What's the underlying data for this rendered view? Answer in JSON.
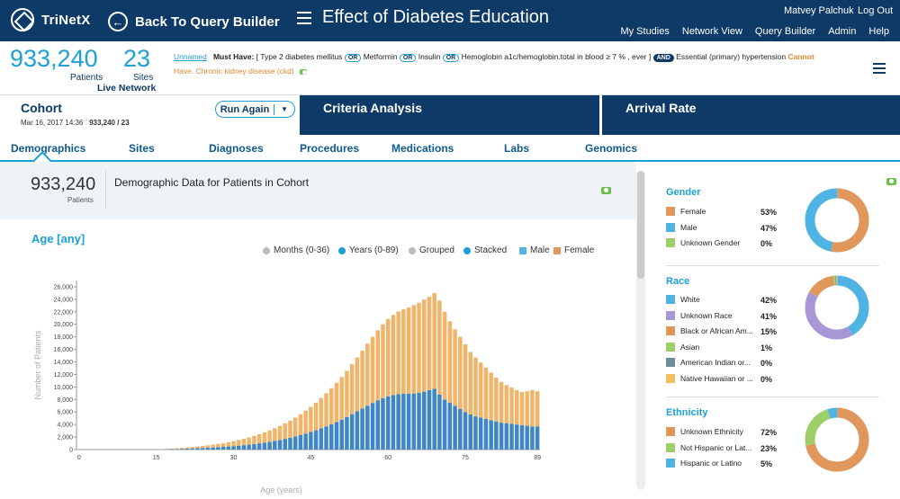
{
  "app": {
    "logo_text": "TriNetX",
    "back_label": "Back To Query Builder",
    "query_title": "Effect of Diabetes Education"
  },
  "user": {
    "name": "Matvey Palchuk",
    "logout": "Log Out"
  },
  "nav": [
    "My Studies",
    "Network View",
    "Query Builder",
    "Admin",
    "Help"
  ],
  "stats": {
    "patients_value": "933,240",
    "patients_label": "Patients",
    "sites_value": "23",
    "sites_label": "Sites",
    "network_label": "Live Network"
  },
  "criteria": {
    "name": "Unnamed",
    "must_have_label": "Must Have:",
    "must_have_text1": "[ Type 2 diabetes mellitus",
    "must_have_text2": "Metformin",
    "must_have_text3": "Insulin",
    "must_have_text4": "Hemoglobin a1c/hemoglobin.total in blood ≥ 7 % , ever ]",
    "must_have_text5": "Essential (primary) hypertension",
    "op_or": "OR",
    "op_and": "AND",
    "cannot": "Cannot",
    "have": "Have: Chronic kidney disease (ckd)"
  },
  "cohort": {
    "title": "Cohort",
    "date": "Mar 16, 2017 14:36",
    "count": "933,240 / 23",
    "run_again": "Run Again"
  },
  "big_tabs": [
    "Criteria Analysis",
    "Arrival Rate"
  ],
  "tabs": [
    "Demographics",
    "Sites",
    "Diagnoses",
    "Procedures",
    "Medications",
    "Labs",
    "Genomics"
  ],
  "summary": {
    "number": "933,240",
    "label": "Patients",
    "title": "Demographic Data for Patients in Cohort"
  },
  "age": {
    "title": "Age [any]",
    "opt_months": "Months (0-36)",
    "opt_years": "Years (0-89)",
    "opt_grouped": "Grouped",
    "opt_stacked": "Stacked",
    "male": "Male",
    "female": "Female"
  },
  "colors": {
    "male": "#3f86c6",
    "female": "#f0b56a",
    "blue_dark": "#0d3a66",
    "blue_accent": "#1ca0d6"
  },
  "gender": {
    "title": "Gender",
    "items": [
      {
        "label": "Female",
        "pct": "53%",
        "color": "#e0975c"
      },
      {
        "label": "Male",
        "pct": "47%",
        "color": "#4fb3e4"
      },
      {
        "label": "Unknown Gender",
        "pct": "0%",
        "color": "#9ccf6a"
      }
    ],
    "values": [
      53,
      47,
      0
    ]
  },
  "race": {
    "title": "Race",
    "items": [
      {
        "label": "White",
        "pct": "42%",
        "color": "#4fb3e4"
      },
      {
        "label": "Unknown Race",
        "pct": "41%",
        "color": "#a797d6"
      },
      {
        "label": "Black or African Am...",
        "pct": "15%",
        "color": "#e0975c"
      },
      {
        "label": "Asian",
        "pct": "1%",
        "color": "#9ccf6a"
      },
      {
        "label": "American Indian or...",
        "pct": "0%",
        "color": "#6f8c9a"
      },
      {
        "label": "Native Hawaiian or ...",
        "pct": "0%",
        "color": "#f0c060"
      }
    ],
    "values": [
      42,
      41,
      15,
      1,
      0.5,
      0.5
    ]
  },
  "ethnicity": {
    "title": "Ethnicity",
    "items": [
      {
        "label": "Unknown Ethnicity",
        "pct": "72%",
        "color": "#e0975c"
      },
      {
        "label": "Not Hispanic or Lat...",
        "pct": "23%",
        "color": "#9ccf6a"
      },
      {
        "label": "Hispanic or Latino",
        "pct": "5%",
        "color": "#4fb3e4"
      }
    ],
    "values": [
      72,
      23,
      5
    ]
  },
  "chart_data": {
    "type": "bar",
    "stacked": true,
    "title": "Age [any]",
    "xlabel": "Age (years)",
    "ylabel": "Number of Patients",
    "xlim": [
      0,
      89
    ],
    "ylim": [
      0,
      27000
    ],
    "xticks": [
      0,
      15,
      30,
      45,
      60,
      75,
      89
    ],
    "yticks": [
      0,
      2000,
      4000,
      6000,
      8000,
      10000,
      12000,
      14000,
      16000,
      18000,
      20000,
      22000,
      24000,
      26000
    ],
    "ytick_labels": [
      "0",
      "2,000",
      "4,000",
      "6,000",
      "8,000",
      "10,000",
      "12,000",
      "14,000",
      "16,000",
      "18,000",
      "20,000",
      "22,000",
      "24,000",
      "26,000"
    ],
    "series": [
      {
        "name": "Male",
        "values": [
          0,
          0,
          0,
          0,
          0,
          0,
          0,
          0,
          0,
          0,
          0,
          0,
          0,
          0,
          10,
          20,
          30,
          50,
          70,
          90,
          120,
          150,
          180,
          210,
          250,
          290,
          330,
          380,
          430,
          490,
          550,
          620,
          700,
          780,
          880,
          990,
          1110,
          1240,
          1380,
          1530,
          1700,
          1880,
          2080,
          2300,
          2540,
          2800,
          3080,
          3380,
          3700,
          4040,
          4400,
          4780,
          5200,
          5650,
          6100,
          6550,
          7000,
          7450,
          7850,
          8200,
          8500,
          8700,
          8850,
          8900,
          8900,
          8950,
          9050,
          9250,
          9500,
          9700,
          8800,
          8000,
          7500,
          7000,
          6500,
          6000,
          5600,
          5300,
          5100,
          4900,
          4700,
          4500,
          4300,
          4200,
          4100,
          4000,
          3900,
          3800,
          3700,
          3700
        ]
      },
      {
        "name": "Female",
        "values": [
          0,
          0,
          0,
          0,
          0,
          0,
          0,
          0,
          0,
          0,
          0,
          0,
          0,
          0,
          10,
          20,
          40,
          60,
          80,
          110,
          150,
          190,
          230,
          280,
          330,
          390,
          450,
          520,
          600,
          690,
          790,
          900,
          1020,
          1150,
          1300,
          1460,
          1630,
          1820,
          2020,
          2240,
          2480,
          2740,
          3020,
          3330,
          3660,
          4020,
          4410,
          4830,
          5280,
          5760,
          6270,
          6810,
          7380,
          7980,
          8600,
          9240,
          9900,
          10550,
          11200,
          11800,
          12350,
          12800,
          13200,
          13500,
          13800,
          14100,
          14400,
          14700,
          14900,
          15300,
          15000,
          14000,
          13000,
          12200,
          11500,
          10800,
          10000,
          9400,
          8800,
          8200,
          7600,
          7000,
          6500,
          6100,
          5800,
          5500,
          5300,
          5500,
          5800,
          5600
        ]
      }
    ]
  }
}
